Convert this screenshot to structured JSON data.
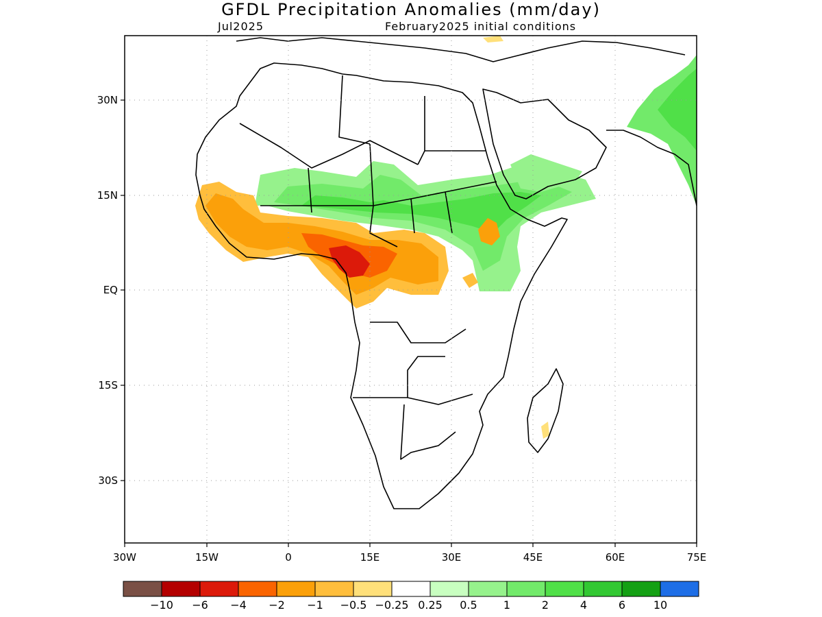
{
  "map": {
    "title": "GFDL Precipitation Anomalies (mm/day)",
    "month_label": "Jul2025",
    "init_label": "February2025 initial conditions",
    "lat_labels": [
      "30N",
      "15N",
      "EQ",
      "15S",
      "30S"
    ],
    "lon_labels": [
      "30W",
      "15W",
      "0",
      "15E",
      "30E",
      "45E",
      "60E",
      "75E"
    ],
    "lon_range": [
      -30,
      75
    ],
    "lat_range": [
      -40,
      40
    ],
    "grid": "dotted"
  },
  "colorbar": {
    "colors": [
      "#7a5045",
      "#b40000",
      "#dc1a0a",
      "#fa6400",
      "#fba00a",
      "#ffbe3c",
      "#ffe07a",
      "#ffffff",
      "#c8ffc0",
      "#96f28c",
      "#72ea6a",
      "#50e048",
      "#32c832",
      "#14a014",
      "#1e6ee6"
    ],
    "labels": [
      "−10",
      "−6",
      "−4",
      "−2",
      "−1",
      "−0.5",
      "−0.25",
      "0.25",
      "0.5",
      "1",
      "2",
      "4",
      "6",
      "10"
    ]
  }
}
